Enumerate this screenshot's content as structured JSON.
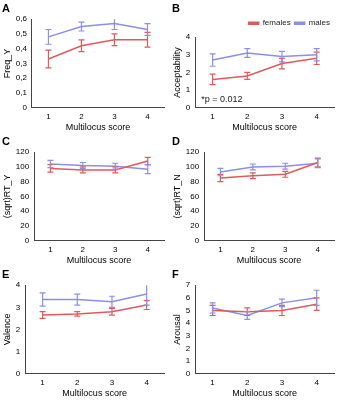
{
  "chart_data": [
    {
      "type": "line",
      "title": "A",
      "x_label": "Multilocus score",
      "y_label": "Freq_Y",
      "categories": [
        1,
        2,
        3,
        4
      ],
      "series": [
        {
          "name": "females",
          "color": "#e05a5a",
          "values": [
            0.33,
            0.42,
            0.46,
            0.46
          ],
          "errors": [
            0.06,
            0.04,
            0.04,
            0.05
          ]
        },
        {
          "name": "males",
          "color": "#8c8fe6",
          "values": [
            0.48,
            0.55,
            0.57,
            0.53
          ],
          "errors": [
            0.05,
            0.03,
            0.04,
            0.04
          ]
        }
      ],
      "ylim": [
        0,
        0.6
      ],
      "yticks": [
        0,
        {
          "value": 0.1,
          "label": "0,1"
        },
        {
          "value": 0.2,
          "label": "0,2"
        },
        {
          "value": 0.3,
          "label": "0,3"
        },
        {
          "value": 0.4,
          "label": "0,4"
        },
        {
          "value": 0.5,
          "label": "0,5"
        },
        {
          "value": 0.6,
          "label": "0,6"
        }
      ],
      "grid": false
    },
    {
      "type": "line",
      "title": "B",
      "x_label": "Multilocus score",
      "y_label": "Acceptability",
      "categories": [
        1,
        2,
        3,
        4
      ],
      "series": [
        {
          "name": "females",
          "color": "#e05a5a",
          "values": [
            1.6,
            1.8,
            2.5,
            2.8
          ],
          "errors": [
            0.3,
            0.2,
            0.3,
            0.35
          ]
        },
        {
          "name": "males",
          "color": "#8c8fe6",
          "values": [
            2.7,
            3.1,
            2.9,
            3.0
          ],
          "errors": [
            0.35,
            0.25,
            0.3,
            0.35
          ]
        }
      ],
      "ylim": [
        0,
        4
      ],
      "yticks": [
        0,
        1,
        2,
        3,
        4
      ],
      "annotation": "*p = 0.012",
      "legend": "top right",
      "grid": false
    },
    {
      "type": "line",
      "title": "C",
      "x_label": "Multilocus score",
      "y_label": "(sqrt)RT_Y",
      "categories": [
        1,
        2,
        3,
        4
      ],
      "series": [
        {
          "name": "females",
          "color": "#e05a5a",
          "values": [
            98,
            96,
            96,
            108
          ],
          "errors": [
            5,
            4,
            4,
            5
          ]
        },
        {
          "name": "males",
          "color": "#8c8fe6",
          "values": [
            104,
            102,
            101,
            97
          ],
          "errors": [
            5,
            4,
            4,
            6
          ]
        }
      ],
      "ylim": [
        0,
        120
      ],
      "yticks": [
        0,
        20,
        40,
        60,
        80,
        100,
        120
      ],
      "grid": false
    },
    {
      "type": "line",
      "title": "D",
      "x_label": "Multilocus score",
      "y_label": "(sqrt)RT_N",
      "categories": [
        1,
        2,
        3,
        4
      ],
      "series": [
        {
          "name": "females",
          "color": "#e05a5a",
          "values": [
            85,
            88,
            90,
            106
          ],
          "errors": [
            5,
            4,
            4,
            6
          ]
        },
        {
          "name": "males",
          "color": "#8c8fe6",
          "values": [
            93,
            100,
            101,
            105
          ],
          "errors": [
            5,
            4,
            4,
            6
          ]
        }
      ],
      "ylim": [
        0,
        120
      ],
      "yticks": [
        0,
        20,
        40,
        60,
        80,
        100,
        120
      ],
      "grid": false
    },
    {
      "type": "line",
      "title": "E",
      "x_label": "Multilocus score",
      "y_label": "Valence",
      "categories": [
        1,
        2,
        3,
        4
      ],
      "series": [
        {
          "name": "females",
          "color": "#e05a5a",
          "values": [
            2.65,
            2.7,
            2.8,
            3.1
          ],
          "errors": [
            0.15,
            0.1,
            0.15,
            0.2
          ]
        },
        {
          "name": "males",
          "color": "#8c8fe6",
          "values": [
            3.35,
            3.35,
            3.25,
            3.6
          ],
          "errors": [
            0.3,
            0.25,
            0.25,
            0.5
          ]
        }
      ],
      "ylim": [
        0,
        4
      ],
      "yticks": [
        0,
        1,
        2,
        3,
        4
      ],
      "grid": false
    },
    {
      "type": "line",
      "title": "F",
      "x_label": "Multilocus score",
      "y_label": "Arousal",
      "categories": [
        1,
        2,
        3,
        4
      ],
      "series": [
        {
          "name": "females",
          "color": "#e05a5a",
          "values": [
            5.0,
            4.9,
            5.0,
            5.5
          ],
          "errors": [
            0.4,
            0.3,
            0.4,
            0.5
          ]
        },
        {
          "name": "males",
          "color": "#8c8fe6",
          "values": [
            5.2,
            4.6,
            5.6,
            6.0
          ],
          "errors": [
            0.4,
            0.3,
            0.3,
            0.6
          ]
        }
      ],
      "ylim": [
        0,
        7
      ],
      "yticks": [
        0,
        1,
        2,
        3,
        4,
        5,
        6,
        7
      ],
      "grid": false
    }
  ]
}
